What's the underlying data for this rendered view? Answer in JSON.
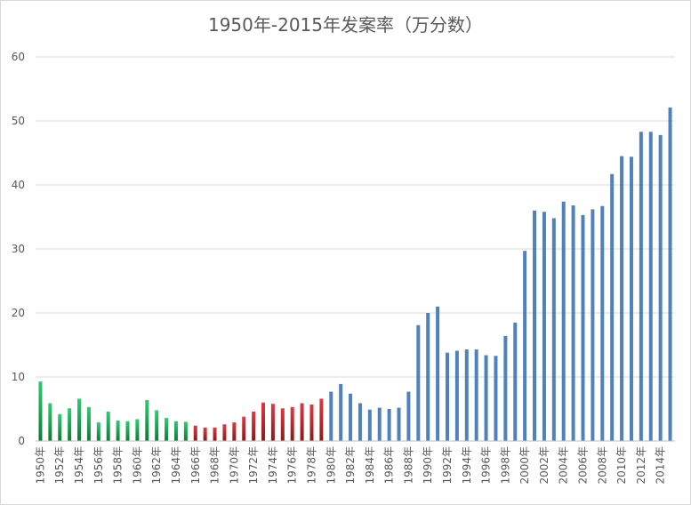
{
  "chart_data": {
    "type": "bar",
    "title": "1950年-2015年发案率（万分数）",
    "xlabel": "",
    "ylabel": "",
    "ylim": [
      0,
      60
    ],
    "yticks": [
      0,
      10,
      20,
      30,
      40,
      50,
      60
    ],
    "grid": true,
    "legend": "none",
    "categories": [
      "1950年",
      "1951年",
      "1952年",
      "1953年",
      "1954年",
      "1955年",
      "1956年",
      "1957年",
      "1958年",
      "1959年",
      "1960年",
      "1961年",
      "1962年",
      "1963年",
      "1964年",
      "1965年",
      "1966年",
      "1967年",
      "1968年",
      "1969年",
      "1970年",
      "1971年",
      "1972年",
      "1973年",
      "1974年",
      "1975年",
      "1976年",
      "1977年",
      "1978年",
      "1979年",
      "1980年",
      "1981年",
      "1982年",
      "1983年",
      "1984年",
      "1985年",
      "1986年",
      "1987年",
      "1988年",
      "1989年",
      "1990年",
      "1991年",
      "1992年",
      "1993年",
      "1994年",
      "1995年",
      "1996年",
      "1997年",
      "1998年",
      "1999年",
      "2000年",
      "2001年",
      "2002年",
      "2003年",
      "2004年",
      "2005年",
      "2006年",
      "2007年",
      "2008年",
      "2009年",
      "2010年",
      "2011年",
      "2012年",
      "2013年",
      "2014年",
      "2015年"
    ],
    "tick_labels": [
      "1950年",
      "1952年",
      "1954年",
      "1956年",
      "1958年",
      "1960年",
      "1962年",
      "1964年",
      "1966年",
      "1968年",
      "1970年",
      "1972年",
      "1974年",
      "1976年",
      "1978年",
      "1980年",
      "1982年",
      "1984年",
      "1986年",
      "1988年",
      "1990年",
      "1992年",
      "1994年",
      "1996年",
      "1998年",
      "2000年",
      "2002年",
      "2004年",
      "2006年",
      "2008年",
      "2010年",
      "2012年",
      "2014年"
    ],
    "values": [
      9.3,
      5.9,
      4.2,
      5.1,
      6.6,
      5.3,
      2.9,
      4.6,
      3.2,
      3.1,
      3.4,
      6.4,
      4.8,
      3.6,
      3.1,
      3.0,
      2.4,
      2.1,
      2.1,
      2.6,
      2.9,
      3.8,
      4.6,
      6.0,
      5.8,
      5.1,
      5.3,
      5.9,
      5.7,
      6.6,
      7.7,
      8.9,
      7.4,
      5.9,
      4.9,
      5.2,
      5.0,
      5.2,
      7.7,
      18.1,
      20.0,
      21.0,
      13.8,
      14.1,
      14.3,
      14.3,
      13.4,
      13.3,
      16.4,
      18.5,
      29.7,
      36.0,
      35.8,
      34.8,
      37.4,
      36.8,
      35.3,
      36.2,
      36.7,
      41.7,
      44.5,
      44.4,
      48.3,
      48.3,
      47.8,
      52.1
    ],
    "colors": {
      "period_1950_1965": "#2ecc71",
      "period_1966_1979": "#e0393e",
      "period_1980_2015": "#4f81bd",
      "period_1950_1965_base": "#0f7a35",
      "period_1966_1979_base": "#8b1a1a"
    }
  }
}
